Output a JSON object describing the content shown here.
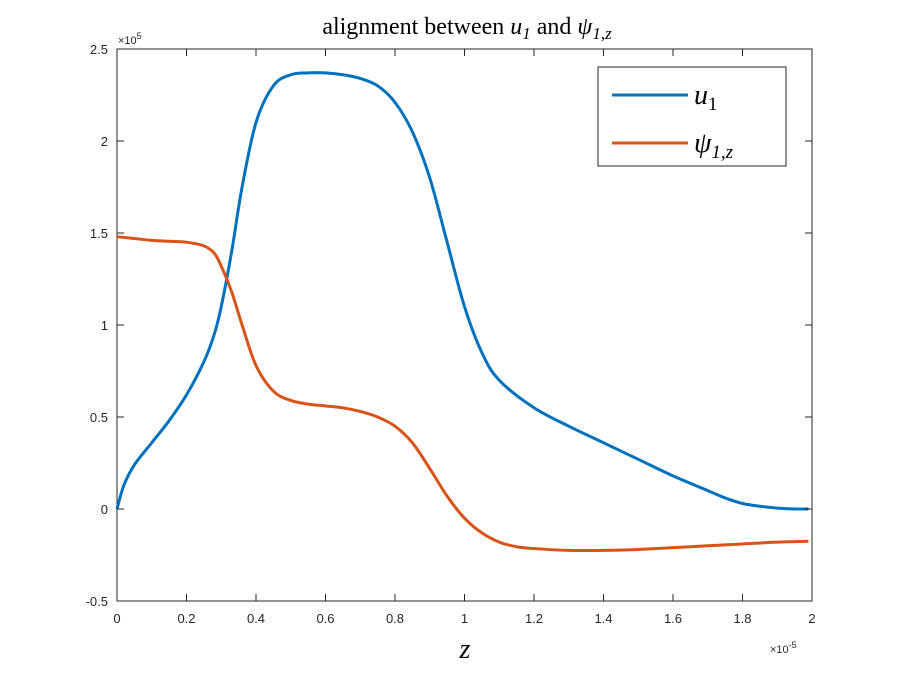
{
  "chart_data": {
    "type": "line",
    "title": {
      "prefix": "alignment between ",
      "a": "u",
      "a_sub": "1",
      "mid": " and ",
      "b": "ψ",
      "b_sub": "1,z"
    },
    "xlabel": "z",
    "ylabel": "",
    "x_exponent_label": "×10",
    "x_exponent": "-5",
    "y_exponent_label": "×10",
    "y_exponent": "5",
    "xlim": [
      0,
      2
    ],
    "ylim": [
      -0.5,
      2.5
    ],
    "x_ticks": [
      0,
      0.2,
      0.4,
      0.6,
      0.8,
      1,
      1.2,
      1.4,
      1.6,
      1.8,
      2
    ],
    "x_tick_labels": [
      "0",
      "0.2",
      "0.4",
      "0.6",
      "0.8",
      "1",
      "1.2",
      "1.4",
      "1.6",
      "1.8",
      "2"
    ],
    "y_ticks": [
      -0.5,
      0,
      0.5,
      1,
      1.5,
      2,
      2.5
    ],
    "y_tick_labels": [
      "-0.5",
      "0",
      "0.5",
      "1",
      "1.5",
      "2",
      "2.5"
    ],
    "grid": false,
    "legend_position": "top-right",
    "series": [
      {
        "name": "u",
        "name_sub": "1",
        "color": "#0072BD",
        "x": [
          0,
          0.02,
          0.05,
          0.1,
          0.15,
          0.2,
          0.25,
          0.28,
          0.3,
          0.33,
          0.36,
          0.4,
          0.45,
          0.5,
          0.55,
          0.6,
          0.65,
          0.7,
          0.75,
          0.8,
          0.85,
          0.9,
          0.95,
          1.0,
          1.05,
          1.1,
          1.2,
          1.3,
          1.4,
          1.5,
          1.6,
          1.7,
          1.75,
          1.8,
          1.85,
          1.9,
          1.95,
          1.99
        ],
        "y": [
          0,
          0.13,
          0.24,
          0.36,
          0.48,
          0.62,
          0.8,
          0.95,
          1.1,
          1.4,
          1.75,
          2.1,
          2.3,
          2.36,
          2.37,
          2.37,
          2.36,
          2.34,
          2.3,
          2.21,
          2.05,
          1.8,
          1.45,
          1.1,
          0.85,
          0.7,
          0.55,
          0.45,
          0.36,
          0.27,
          0.18,
          0.1,
          0.06,
          0.03,
          0.015,
          0.005,
          0.0,
          0.0
        ]
      },
      {
        "name": "ψ",
        "name_sub": "1,z",
        "color": "#D95319",
        "x": [
          0,
          0.05,
          0.1,
          0.15,
          0.2,
          0.25,
          0.28,
          0.3,
          0.33,
          0.36,
          0.4,
          0.45,
          0.5,
          0.55,
          0.6,
          0.65,
          0.7,
          0.75,
          0.8,
          0.85,
          0.9,
          0.95,
          1.0,
          1.05,
          1.1,
          1.15,
          1.2,
          1.3,
          1.4,
          1.5,
          1.6,
          1.7,
          1.8,
          1.9,
          1.99
        ],
        "y": [
          1.48,
          1.47,
          1.46,
          1.455,
          1.45,
          1.43,
          1.39,
          1.32,
          1.18,
          1.0,
          0.78,
          0.64,
          0.59,
          0.57,
          0.56,
          0.55,
          0.53,
          0.5,
          0.45,
          0.36,
          0.22,
          0.07,
          -0.05,
          -0.13,
          -0.18,
          -0.205,
          -0.215,
          -0.225,
          -0.225,
          -0.22,
          -0.21,
          -0.2,
          -0.19,
          -0.18,
          -0.175
        ]
      }
    ]
  }
}
